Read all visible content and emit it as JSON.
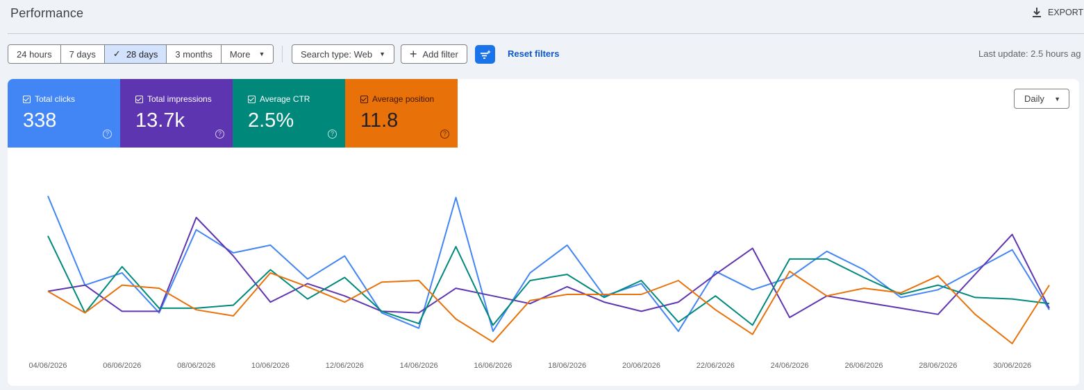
{
  "header": {
    "title": "Performance",
    "export_label": "EXPORT"
  },
  "toolbar": {
    "ranges": [
      "24 hours",
      "7 days",
      "28 days",
      "3 months"
    ],
    "active_range": "28 days",
    "more_label": "More",
    "search_type_label": "Search type: Web",
    "add_filter_label": "Add filter",
    "reset_filters_label": "Reset filters",
    "last_update": "Last update: 2.5 hours ag"
  },
  "metrics": [
    {
      "label": "Total clicks",
      "value": "338",
      "color": "#4285f4",
      "checked": true
    },
    {
      "label": "Total impressions",
      "value": "13.7k",
      "color": "#5e35b1",
      "checked": true
    },
    {
      "label": "Average CTR",
      "value": "2.5%",
      "color": "#00897b",
      "checked": true
    },
    {
      "label": "Average position",
      "value": "11.8",
      "color": "#e8710a",
      "checked": true
    }
  ],
  "granularity": {
    "selected": "Daily"
  },
  "chart_data": {
    "type": "line",
    "x_tick_labels": [
      "04/06/2026",
      "06/06/2026",
      "08/06/2026",
      "10/06/2026",
      "12/06/2026",
      "14/06/2026",
      "16/06/2026",
      "18/06/2026",
      "20/06/2026",
      "22/06/2026",
      "24/06/2026",
      "26/06/2026",
      "28/06/2026",
      "30/06/2026"
    ],
    "x": [
      "04/06/2026",
      "05/06/2026",
      "06/06/2026",
      "07/06/2026",
      "08/06/2026",
      "09/06/2026",
      "10/06/2026",
      "11/06/2026",
      "12/06/2026",
      "13/06/2026",
      "14/06/2026",
      "15/06/2026",
      "16/06/2026",
      "17/06/2026",
      "18/06/2026",
      "19/06/2026",
      "20/06/2026",
      "21/06/2026",
      "22/06/2026",
      "23/06/2026",
      "24/06/2026",
      "25/06/2026",
      "26/06/2026",
      "27/06/2026",
      "28/06/2026",
      "29/06/2026",
      "30/06/2026",
      "01/07/2026"
    ],
    "y_axes_shown": false,
    "grid": false,
    "series": [
      {
        "name": "Total clicks",
        "color": "#4285f4",
        "values": [
          0.96,
          0.38,
          0.46,
          0.2,
          0.74,
          0.59,
          0.64,
          0.42,
          0.57,
          0.2,
          0.1,
          0.95,
          0.08,
          0.46,
          0.64,
          0.31,
          0.39,
          0.08,
          0.47,
          0.35,
          0.43,
          0.6,
          0.48,
          0.3,
          0.35,
          0.48,
          0.61,
          0.22
        ]
      },
      {
        "name": "Total impressions",
        "color": "#5e35b1",
        "values": [
          0.34,
          0.38,
          0.21,
          0.21,
          0.82,
          0.57,
          0.27,
          0.39,
          0.31,
          0.21,
          0.2,
          0.36,
          0.31,
          0.26,
          0.37,
          0.27,
          0.21,
          0.27,
          0.45,
          0.62,
          0.17,
          0.31,
          0.27,
          0.23,
          0.19,
          0.45,
          0.71,
          0.23
        ]
      },
      {
        "name": "Average CTR",
        "color": "#00897b",
        "values": [
          0.7,
          0.2,
          0.5,
          0.23,
          0.23,
          0.25,
          0.48,
          0.29,
          0.43,
          0.21,
          0.13,
          0.63,
          0.12,
          0.41,
          0.45,
          0.3,
          0.41,
          0.14,
          0.31,
          0.12,
          0.55,
          0.55,
          0.43,
          0.32,
          0.38,
          0.3,
          0.29,
          0.26
        ]
      },
      {
        "name": "Average position",
        "color": "#e8710a",
        "values": [
          0.34,
          0.2,
          0.38,
          0.36,
          0.22,
          0.18,
          0.46,
          0.37,
          0.27,
          0.4,
          0.41,
          0.16,
          0.01,
          0.28,
          0.32,
          0.32,
          0.32,
          0.41,
          0.22,
          0.06,
          0.47,
          0.31,
          0.36,
          0.33,
          0.44,
          0.19,
          0.0,
          0.38
        ]
      }
    ]
  }
}
